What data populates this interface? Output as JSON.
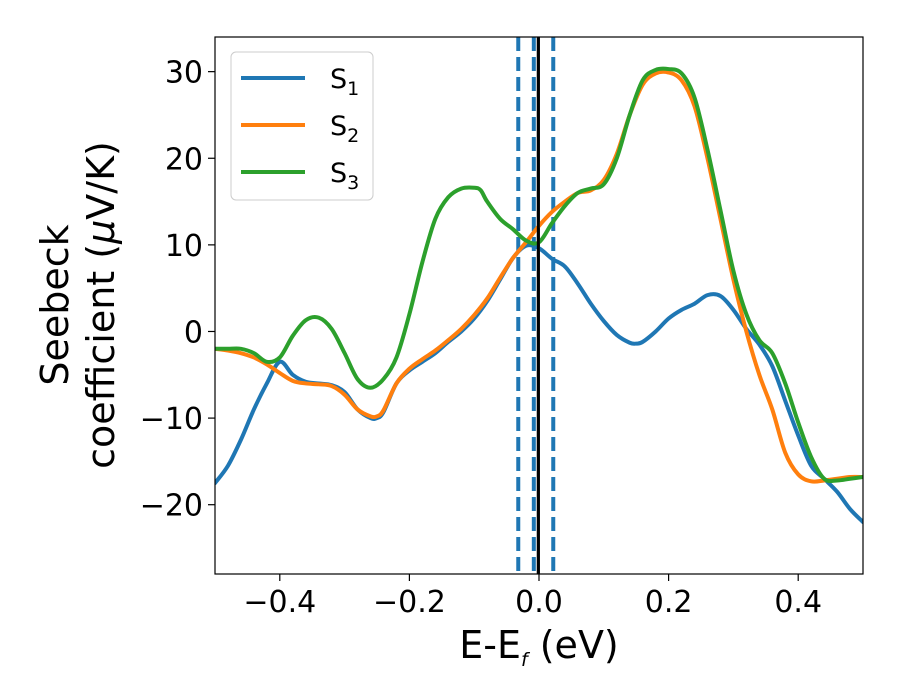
{
  "chart_data": {
    "type": "line",
    "xlabel": "E-E",
    "xlabel_sub": "f",
    "xlabel_unit": " (eV)",
    "ylabel_line1": "Seebeck",
    "ylabel_line2": "coefficient  (",
    "ylabel_mu": "μ",
    "ylabel_unit": "V/K)",
    "xlim": [
      -0.5,
      0.5
    ],
    "ylim": [
      -28,
      34
    ],
    "xticks": [
      -0.4,
      -0.2,
      0.0,
      0.2,
      0.4
    ],
    "xtick_labels": [
      "−0.4",
      "−0.2",
      "0.0",
      "0.2",
      "0.4"
    ],
    "yticks": [
      -20,
      -10,
      0,
      10,
      20,
      30
    ],
    "ytick_labels": [
      "−20",
      "−10",
      "0",
      "10",
      "20",
      "30"
    ],
    "grid": false,
    "legend_position": "top-left",
    "vlines": [
      {
        "x": -0.032,
        "style": "dashed",
        "color": "#1f77b4"
      },
      {
        "x": -0.008,
        "style": "dashed",
        "color": "#1f77b4"
      },
      {
        "x": 0.022,
        "style": "dashed",
        "color": "#1f77b4"
      },
      {
        "x": -0.001,
        "style": "solid",
        "color": "#000000"
      }
    ],
    "series": [
      {
        "name": "S",
        "sub": "1",
        "color": "#1f77b4",
        "x": [
          -0.5,
          -0.48,
          -0.46,
          -0.44,
          -0.42,
          -0.4,
          -0.38,
          -0.36,
          -0.34,
          -0.32,
          -0.3,
          -0.28,
          -0.26,
          -0.25,
          -0.24,
          -0.22,
          -0.2,
          -0.18,
          -0.16,
          -0.14,
          -0.12,
          -0.1,
          -0.08,
          -0.06,
          -0.04,
          -0.02,
          0.0,
          0.02,
          0.04,
          0.06,
          0.08,
          0.1,
          0.12,
          0.14,
          0.15,
          0.16,
          0.18,
          0.2,
          0.22,
          0.24,
          0.26,
          0.28,
          0.3,
          0.32,
          0.34,
          0.36,
          0.38,
          0.4,
          0.42,
          0.44,
          0.46,
          0.48,
          0.5
        ],
        "y": [
          -17.5,
          -15.5,
          -12.5,
          -9,
          -6,
          -3.5,
          -5,
          -5.8,
          -6,
          -6.2,
          -7,
          -9,
          -10,
          -10,
          -9.3,
          -6,
          -4.5,
          -3.5,
          -2.5,
          -1.2,
          0,
          1.5,
          3.5,
          6,
          8.5,
          9.9,
          9.6,
          8.4,
          7.5,
          5.5,
          3.2,
          1.2,
          -0.4,
          -1.3,
          -1.4,
          -1.2,
          0,
          1.5,
          2.5,
          3.2,
          4.2,
          4.1,
          2.5,
          0.3,
          -1.5,
          -4,
          -8,
          -12,
          -15.5,
          -17,
          -18.5,
          -20.5,
          -22
        ]
      },
      {
        "name": "S",
        "sub": "2",
        "color": "#ff7f0e",
        "x": [
          -0.5,
          -0.48,
          -0.46,
          -0.44,
          -0.42,
          -0.4,
          -0.38,
          -0.36,
          -0.34,
          -0.32,
          -0.3,
          -0.28,
          -0.26,
          -0.25,
          -0.24,
          -0.22,
          -0.2,
          -0.18,
          -0.16,
          -0.14,
          -0.12,
          -0.1,
          -0.08,
          -0.06,
          -0.04,
          -0.02,
          0.0,
          0.02,
          0.04,
          0.06,
          0.08,
          0.1,
          0.12,
          0.14,
          0.16,
          0.18,
          0.2,
          0.22,
          0.24,
          0.26,
          0.28,
          0.3,
          0.32,
          0.34,
          0.36,
          0.38,
          0.4,
          0.42,
          0.44,
          0.46,
          0.48,
          0.5
        ],
        "y": [
          -2,
          -2.2,
          -2.5,
          -3,
          -3.8,
          -4.8,
          -5.7,
          -6,
          -6.1,
          -6.3,
          -7.3,
          -9,
          -9.8,
          -9.8,
          -9.1,
          -6,
          -4.3,
          -3.2,
          -2.2,
          -1,
          0.3,
          1.9,
          3.8,
          6.2,
          8.5,
          10.3,
          12.2,
          13.8,
          15,
          16,
          16.3,
          17.5,
          20.5,
          25,
          28.5,
          29.8,
          29.9,
          29,
          26,
          20,
          13,
          6,
          0,
          -5,
          -9,
          -14,
          -16.5,
          -17.3,
          -17.2,
          -17,
          -16.8,
          -16.8
        ]
      },
      {
        "name": "S",
        "sub": "3",
        "color": "#2ca02c",
        "x": [
          -0.5,
          -0.48,
          -0.46,
          -0.44,
          -0.42,
          -0.4,
          -0.38,
          -0.36,
          -0.34,
          -0.32,
          -0.3,
          -0.28,
          -0.26,
          -0.24,
          -0.22,
          -0.2,
          -0.18,
          -0.16,
          -0.14,
          -0.12,
          -0.1,
          -0.09,
          -0.08,
          -0.06,
          -0.04,
          -0.02,
          0.0,
          0.02,
          0.04,
          0.06,
          0.08,
          0.1,
          0.12,
          0.14,
          0.16,
          0.18,
          0.2,
          0.22,
          0.24,
          0.26,
          0.28,
          0.3,
          0.32,
          0.34,
          0.36,
          0.38,
          0.4,
          0.42,
          0.44,
          0.46,
          0.48,
          0.5
        ],
        "y": [
          -2,
          -2,
          -2,
          -2.5,
          -3.5,
          -3,
          -0.5,
          1.3,
          1.6,
          0.3,
          -2.5,
          -5.5,
          -6.5,
          -5.5,
          -3,
          2,
          8,
          13,
          15.5,
          16.5,
          16.6,
          16.3,
          15,
          13,
          11.8,
          10.5,
          10.3,
          12.5,
          14.5,
          16,
          16.5,
          17,
          20,
          25,
          29,
          30.2,
          30.3,
          29.8,
          27,
          21,
          14,
          7,
          2,
          -1,
          -2.5,
          -6,
          -10.5,
          -14.5,
          -17,
          -17.2,
          -17,
          -16.8
        ]
      }
    ]
  }
}
